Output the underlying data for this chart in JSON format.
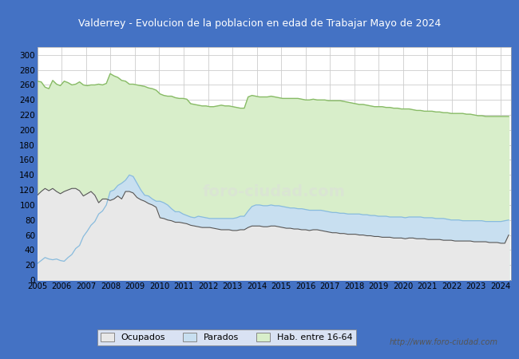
{
  "title": "Valderrey - Evolucion de la poblacion en edad de Trabajar Mayo de 2024",
  "title_bg": "#5b8dd9",
  "title_color": "#ffffff",
  "ylim": [
    0,
    310
  ],
  "yticks": [
    0,
    20,
    40,
    60,
    80,
    100,
    120,
    140,
    160,
    180,
    200,
    220,
    240,
    260,
    280,
    300
  ],
  "legend_labels": [
    "Ocupados",
    "Parados",
    "Hab. entre 16-64"
  ],
  "url_text": "http://www.foro-ciudad.com",
  "background_plot": "#ffffff",
  "grid_color": "#cccccc",
  "hab_line_color": "#88bb66",
  "hab_fill": "#d8eeca",
  "parados_line_color": "#88bbdd",
  "parados_fill": "#c8dff0",
  "ocupados_line_color": "#555555",
  "ocupados_fill": "#e8e8e8",
  "border_color": "#4472c4",
  "hab16_64": [
    265,
    264,
    257,
    255,
    266,
    261,
    259,
    265,
    263,
    260,
    261,
    264,
    260,
    259,
    260,
    260,
    261,
    260,
    262,
    275,
    272,
    270,
    266,
    265,
    261,
    261,
    260,
    259,
    258,
    256,
    255,
    253,
    248,
    246,
    245,
    245,
    243,
    242,
    242,
    241,
    235,
    234,
    233,
    232,
    232,
    231,
    231,
    232,
    233,
    232,
    232,
    231,
    230,
    229,
    229,
    244,
    246,
    245,
    244,
    244,
    244,
    245,
    244,
    243,
    242,
    242,
    242,
    242,
    242,
    241,
    240,
    240,
    241,
    240,
    240,
    240,
    239,
    239,
    239,
    239,
    238,
    237,
    236,
    235,
    234,
    234,
    233,
    232,
    231,
    231,
    231,
    230,
    230,
    229,
    229,
    228,
    228,
    228,
    227,
    226,
    226,
    225,
    225,
    225,
    224,
    224,
    223,
    223,
    222,
    222,
    222,
    222,
    221,
    221,
    220,
    219,
    219,
    218,
    218,
    218,
    218,
    218,
    218,
    218
  ],
  "parados": [
    22,
    26,
    30,
    28,
    27,
    28,
    26,
    25,
    30,
    34,
    42,
    46,
    58,
    65,
    73,
    78,
    88,
    92,
    100,
    118,
    120,
    126,
    129,
    133,
    140,
    138,
    129,
    120,
    113,
    112,
    108,
    105,
    105,
    103,
    100,
    95,
    91,
    91,
    88,
    86,
    84,
    83,
    85,
    84,
    83,
    82,
    82,
    82,
    82,
    82,
    82,
    82,
    83,
    85,
    85,
    92,
    98,
    100,
    100,
    99,
    99,
    100,
    99,
    99,
    98,
    97,
    96,
    96,
    95,
    95,
    94,
    93,
    93,
    93,
    93,
    92,
    91,
    90,
    90,
    89,
    89,
    88,
    88,
    88,
    88,
    87,
    87,
    86,
    86,
    85,
    85,
    85,
    84,
    84,
    84,
    84,
    83,
    84,
    84,
    84,
    84,
    83,
    83,
    83,
    82,
    82,
    82,
    81,
    80,
    80,
    80,
    79,
    79,
    79,
    79,
    79,
    79,
    78,
    78,
    78,
    78,
    78,
    79,
    80
  ],
  "ocupados": [
    113,
    118,
    122,
    119,
    122,
    118,
    115,
    118,
    120,
    122,
    122,
    119,
    112,
    115,
    118,
    113,
    103,
    108,
    108,
    106,
    108,
    112,
    108,
    118,
    118,
    116,
    110,
    107,
    105,
    102,
    100,
    97,
    83,
    82,
    80,
    79,
    77,
    77,
    76,
    75,
    73,
    72,
    71,
    70,
    70,
    70,
    69,
    68,
    67,
    67,
    67,
    66,
    66,
    67,
    67,
    70,
    72,
    72,
    72,
    71,
    71,
    72,
    72,
    71,
    70,
    69,
    69,
    68,
    68,
    67,
    67,
    66,
    67,
    67,
    66,
    65,
    64,
    63,
    63,
    62,
    62,
    61,
    61,
    61,
    60,
    60,
    59,
    59,
    58,
    58,
    57,
    57,
    57,
    56,
    56,
    56,
    55,
    56,
    56,
    55,
    55,
    55,
    54,
    54,
    54,
    54,
    53,
    53,
    53,
    52,
    52,
    52,
    52,
    52,
    51,
    51,
    51,
    51,
    50,
    50,
    50,
    49,
    49,
    60
  ]
}
